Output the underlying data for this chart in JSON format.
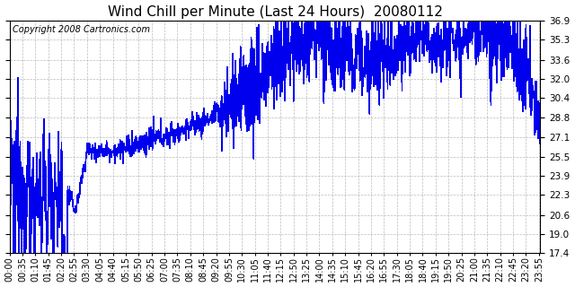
{
  "title": "Wind Chill per Minute (Last 24 Hours)  20080112",
  "copyright": "Copyright 2008 Cartronics.com",
  "ylim": [
    17.4,
    36.9
  ],
  "yticks": [
    17.4,
    19.0,
    20.6,
    22.3,
    23.9,
    25.5,
    27.1,
    28.8,
    30.4,
    32.0,
    33.6,
    35.3,
    36.9
  ],
  "line_color": "#0000EE",
  "bg_color": "#ffffff",
  "plot_bg_color": "#ffffff",
  "grid_color": "#bbbbbb",
  "title_color": "#000000",
  "copyright_color": "#000000",
  "title_fontsize": 11,
  "copyright_fontsize": 7,
  "tick_fontsize": 7.5,
  "num_points": 1440,
  "xtick_interval": 35
}
